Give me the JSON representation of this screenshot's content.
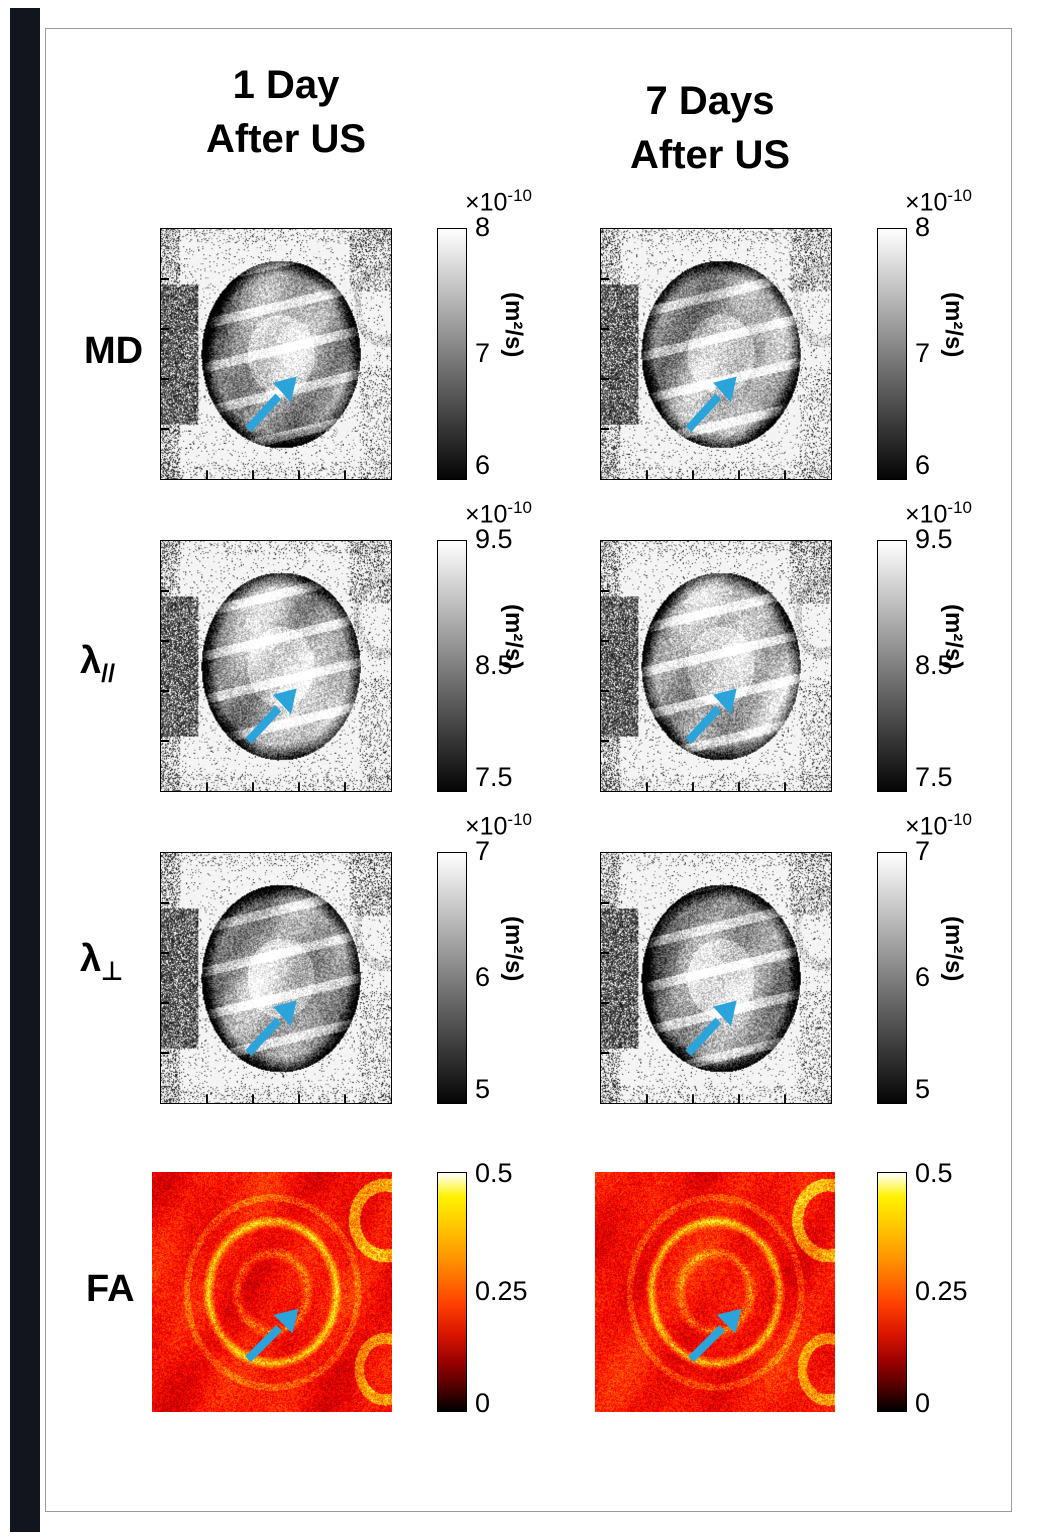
{
  "headers": {
    "col1": {
      "line1": "1 Day",
      "line2": "After US"
    },
    "col2": {
      "line1": "7 Days",
      "line2": "After US"
    }
  },
  "rows": {
    "md": {
      "label": "MD",
      "exp_base": "×10",
      "exp_sup": "-10",
      "unit": "(m²/s)",
      "ticks": [
        "8",
        "7",
        "6"
      ]
    },
    "lpar": {
      "label": "λ",
      "label_sub": "//",
      "exp_base": "×10",
      "exp_sup": "-10",
      "unit": "(m²/s)",
      "ticks": [
        "9.5",
        "8.5",
        "7.5"
      ]
    },
    "lperp": {
      "label": "λ",
      "label_sub": "⊥",
      "exp_base": "×10",
      "exp_sup": "-10",
      "unit": "(m²/s)",
      "ticks": [
        "7",
        "6",
        "5"
      ]
    },
    "fa": {
      "label": "FA",
      "ticks": [
        "0.5",
        "0.25",
        "0"
      ]
    }
  },
  "colors": {
    "arrow": "#2ba4db",
    "sidebar": "#13151d"
  }
}
